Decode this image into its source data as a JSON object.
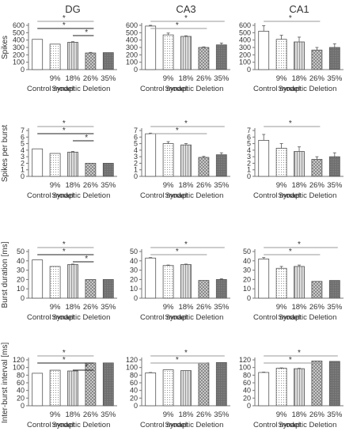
{
  "columns": [
    "DG",
    "CA3",
    "CA1"
  ],
  "row_ylabels": [
    "Spikes",
    "Spikes per burst",
    "Burst duration [ms]",
    "Inter-burst interval [ms]"
  ],
  "group_labels": {
    "control": "Control model",
    "deletion": "Synaptic Deletion",
    "percents": [
      "9%",
      "18%",
      "26%",
      "35%"
    ]
  },
  "significance_marker": "*",
  "chart_data": [
    {
      "type": "bar",
      "row": 0,
      "col": 0,
      "ylabel": "Spikes",
      "title": "DG",
      "categories": [
        "Control model",
        "9%",
        "18%",
        "26%",
        "35%"
      ],
      "values": [
        410,
        345,
        370,
        225,
        230
      ],
      "errors": [
        0,
        0,
        8,
        8,
        0
      ],
      "ylim": [
        0,
        600
      ],
      "yticks": [
        0,
        100,
        200,
        300,
        400,
        500,
        600
      ],
      "significance": [
        [
          0,
          3,
          "gray"
        ],
        [
          0,
          3,
          "black"
        ],
        [
          2,
          3,
          "black"
        ]
      ]
    },
    {
      "type": "bar",
      "row": 0,
      "col": 1,
      "ylabel": "",
      "title": "CA3",
      "categories": [
        "Control model",
        "9%",
        "18%",
        "26%",
        "35%"
      ],
      "values": [
        590,
        470,
        450,
        300,
        335
      ],
      "errors": [
        10,
        25,
        8,
        8,
        25
      ],
      "ylim": [
        0,
        600
      ],
      "yticks": [
        0,
        100,
        200,
        300,
        400,
        500,
        600
      ],
      "significance": [
        [
          0,
          4,
          "gray"
        ],
        [
          0,
          3,
          "gray"
        ]
      ]
    },
    {
      "type": "bar",
      "row": 0,
      "col": 2,
      "ylabel": "",
      "title": "CA1",
      "categories": [
        "Control model",
        "9%",
        "18%",
        "26%",
        "35%"
      ],
      "values": [
        520,
        410,
        375,
        265,
        300
      ],
      "errors": [
        75,
        55,
        65,
        35,
        50
      ],
      "ylim": [
        0,
        600
      ],
      "yticks": [
        0,
        100,
        200,
        300,
        400,
        500,
        600
      ],
      "significance": [
        [
          0,
          3,
          "gray"
        ]
      ]
    },
    {
      "type": "bar",
      "row": 1,
      "col": 0,
      "ylabel": "Spikes per burst",
      "title": "",
      "categories": [
        "Control model",
        "9%",
        "18%",
        "26%",
        "35%"
      ],
      "values": [
        4.2,
        3.5,
        3.7,
        2.0,
        2.0
      ],
      "errors": [
        0,
        0,
        0.1,
        0,
        0
      ],
      "ylim": [
        0,
        7
      ],
      "yticks": [
        0,
        1,
        2,
        3,
        4,
        5,
        6,
        7
      ],
      "significance": [
        [
          0,
          3,
          "gray"
        ],
        [
          0,
          3,
          "black"
        ],
        [
          2,
          3,
          "black"
        ]
      ]
    },
    {
      "type": "bar",
      "row": 1,
      "col": 1,
      "ylabel": "",
      "title": "",
      "categories": [
        "Control model",
        "9%",
        "18%",
        "26%",
        "35%"
      ],
      "values": [
        6.5,
        5.0,
        4.8,
        2.9,
        3.3
      ],
      "errors": [
        0.1,
        0.3,
        0.2,
        0.15,
        0.3
      ],
      "ylim": [
        0,
        7
      ],
      "yticks": [
        0,
        1,
        2,
        3,
        4,
        5,
        6,
        7
      ],
      "significance": [
        [
          0,
          4,
          "gray"
        ],
        [
          0,
          3,
          "gray"
        ]
      ]
    },
    {
      "type": "bar",
      "row": 1,
      "col": 2,
      "ylabel": "",
      "title": "",
      "categories": [
        "Control model",
        "9%",
        "18%",
        "26%",
        "35%"
      ],
      "values": [
        5.5,
        4.3,
        3.8,
        2.6,
        3.0
      ],
      "errors": [
        0.9,
        0.7,
        0.7,
        0.4,
        0.6
      ],
      "ylim": [
        0,
        7
      ],
      "yticks": [
        0,
        1,
        2,
        3,
        4,
        5,
        6,
        7
      ],
      "significance": [
        [
          0,
          3,
          "gray"
        ]
      ]
    },
    {
      "type": "bar",
      "row": 2,
      "col": 0,
      "ylabel": "Burst duration [ms]",
      "title": "",
      "categories": [
        "Control model",
        "9%",
        "18%",
        "26%",
        "35%"
      ],
      "values": [
        41,
        34,
        36,
        20,
        20
      ],
      "errors": [
        0,
        0,
        0.5,
        0,
        0
      ],
      "ylim": [
        0,
        50
      ],
      "yticks": [
        0,
        10,
        20,
        30,
        40,
        50
      ],
      "significance": [
        [
          0,
          3,
          "gray"
        ],
        [
          0,
          3,
          "black"
        ],
        [
          2,
          3,
          "black"
        ]
      ]
    },
    {
      "type": "bar",
      "row": 2,
      "col": 1,
      "ylabel": "",
      "title": "",
      "categories": [
        "Control model",
        "9%",
        "18%",
        "26%",
        "35%"
      ],
      "values": [
        43,
        35,
        36,
        19,
        20
      ],
      "errors": [
        0.5,
        0.5,
        0.5,
        0,
        0.8
      ],
      "ylim": [
        0,
        50
      ],
      "yticks": [
        0,
        10,
        20,
        30,
        40,
        50
      ],
      "significance": [
        [
          0,
          4,
          "gray"
        ],
        [
          0,
          3,
          "gray"
        ]
      ]
    },
    {
      "type": "bar",
      "row": 2,
      "col": 2,
      "ylabel": "",
      "title": "",
      "categories": [
        "Control model",
        "9%",
        "18%",
        "26%",
        "35%"
      ],
      "values": [
        42,
        32,
        34,
        18,
        19
      ],
      "errors": [
        1.5,
        2,
        1.5,
        0,
        0
      ],
      "ylim": [
        0,
        50
      ],
      "yticks": [
        0,
        10,
        20,
        30,
        40,
        50
      ],
      "significance": [
        [
          0,
          4,
          "gray"
        ],
        [
          0,
          3,
          "gray"
        ]
      ]
    },
    {
      "type": "bar",
      "row": 3,
      "col": 0,
      "ylabel": "Inter-burst interval [ms]",
      "title": "",
      "categories": [
        "Control model",
        "9%",
        "18%",
        "26%",
        "35%"
      ],
      "values": [
        85,
        93,
        91,
        112,
        112
      ],
      "errors": [
        0,
        0,
        0,
        0,
        0
      ],
      "ylim": [
        0,
        120
      ],
      "yticks": [
        0,
        20,
        40,
        60,
        80,
        100,
        120
      ],
      "significance": [
        [
          0,
          3,
          "gray"
        ],
        [
          0,
          3,
          "black"
        ],
        [
          2,
          3,
          "black"
        ]
      ]
    },
    {
      "type": "bar",
      "row": 3,
      "col": 1,
      "ylabel": "",
      "title": "",
      "categories": [
        "Control model",
        "9%",
        "18%",
        "26%",
        "35%"
      ],
      "values": [
        86,
        94,
        92,
        112,
        113
      ],
      "errors": [
        1,
        0,
        0,
        0,
        0
      ],
      "ylim": [
        0,
        120
      ],
      "yticks": [
        0,
        20,
        40,
        60,
        80,
        100,
        120
      ],
      "significance": [
        [
          0,
          4,
          "gray"
        ],
        [
          0,
          3,
          "gray"
        ]
      ]
    },
    {
      "type": "bar",
      "row": 3,
      "col": 2,
      "ylabel": "",
      "title": "",
      "categories": [
        "Control model",
        "9%",
        "18%",
        "26%",
        "35%"
      ],
      "values": [
        87,
        98,
        97,
        117,
        116
      ],
      "errors": [
        1,
        1,
        1,
        0,
        0
      ],
      "ylim": [
        0,
        120
      ],
      "yticks": [
        0,
        20,
        40,
        60,
        80,
        100,
        120
      ],
      "significance": [
        [
          0,
          4,
          "gray"
        ],
        [
          0,
          3,
          "gray"
        ]
      ]
    }
  ],
  "colors": {
    "axis": "#777777",
    "text": "#333333",
    "sig_gray": "#9a9a9a",
    "sig_black": "#222222",
    "bar_edge": "#555555",
    "error_bar": "#555555"
  }
}
